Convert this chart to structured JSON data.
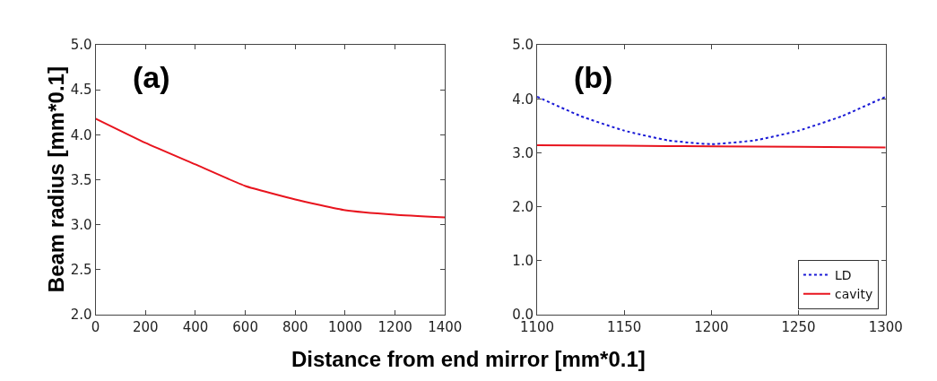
{
  "chart_data": [
    {
      "type": "line",
      "ylabel": "Beam radius [mm*0.1]",
      "xlabel": "Distance from end mirror [mm*0.1]",
      "annotations": [
        "(a)"
      ],
      "x": [
        0,
        200,
        400,
        600,
        800,
        1000,
        1200,
        1400
      ],
      "series": [
        {
          "color": "#e8141e",
          "values": [
            4.18,
            3.91,
            3.67,
            3.43,
            3.28,
            3.16,
            3.11,
            3.08
          ]
        }
      ],
      "xlim": [
        0,
        1400
      ],
      "xticks": [
        0,
        200,
        400,
        600,
        800,
        1000,
        1200,
        1400
      ],
      "ylim": [
        2.0,
        5.0
      ],
      "yticks": [
        {
          "value": 2.0,
          "label": "2.0"
        },
        2.5,
        {
          "value": 3.0,
          "label": "3.0"
        },
        3.5,
        {
          "value": 4.0,
          "label": "4.0"
        },
        4.5,
        {
          "value": 5.0,
          "label": "5.0"
        }
      ],
      "legend": false
    },
    {
      "type": "line",
      "annotations": [
        "(b)"
      ],
      "x": [
        1100,
        1125,
        1150,
        1175,
        1200,
        1225,
        1250,
        1275,
        1300
      ],
      "series": [
        {
          "name": "LD",
          "color": "#1a1ad6",
          "line_style": "dotted",
          "values": [
            4.04,
            3.68,
            3.41,
            3.23,
            3.16,
            3.23,
            3.41,
            3.68,
            4.04
          ]
        },
        {
          "name": "cavity",
          "color": "#e8141e",
          "line_style": "solid",
          "x": [
            1100,
            1150,
            1200,
            1250,
            1300
          ],
          "values": [
            3.14,
            3.13,
            3.12,
            3.11,
            3.1
          ]
        }
      ],
      "xlim": [
        1100,
        1300
      ],
      "xticks": [
        1100,
        1150,
        1200,
        1250,
        1300
      ],
      "ylim": [
        0.0,
        5.0
      ],
      "yticks": [
        {
          "value": 0,
          "label": "0.0"
        },
        {
          "value": 1,
          "label": "1.0"
        },
        {
          "value": 2,
          "label": "2.0"
        },
        {
          "value": 3,
          "label": "3.0"
        },
        {
          "value": 4,
          "label": "4.0"
        },
        {
          "value": 5,
          "label": "5.0"
        }
      ],
      "legend": "bottom right"
    }
  ]
}
